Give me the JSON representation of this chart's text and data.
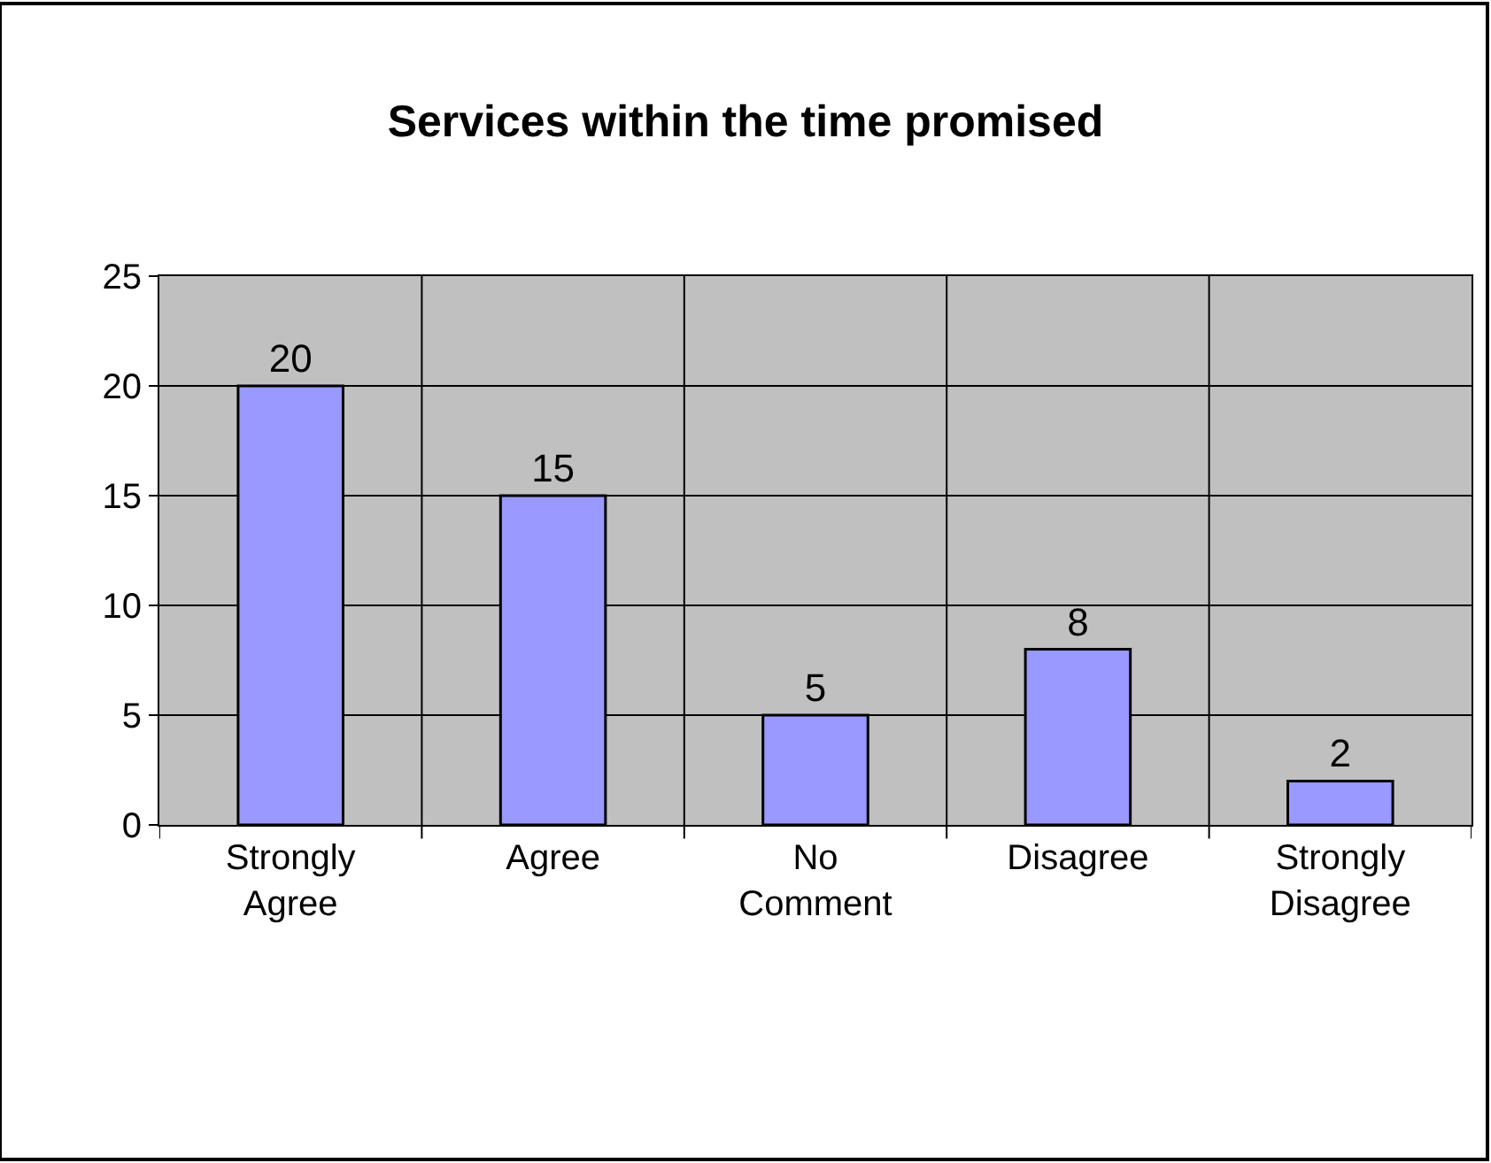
{
  "chart_data": {
    "type": "bar",
    "title": "Services within the time promised",
    "categories": [
      "Strongly Agree",
      "Agree",
      "No Comment",
      "Disagree",
      "Strongly Disagree"
    ],
    "values": [
      20,
      15,
      5,
      8,
      2
    ],
    "color": "#9999ff",
    "ylim": [
      0,
      25
    ],
    "yticks": [
      0,
      5,
      10,
      15,
      20,
      25
    ],
    "grid": true,
    "data_labels": true
  }
}
